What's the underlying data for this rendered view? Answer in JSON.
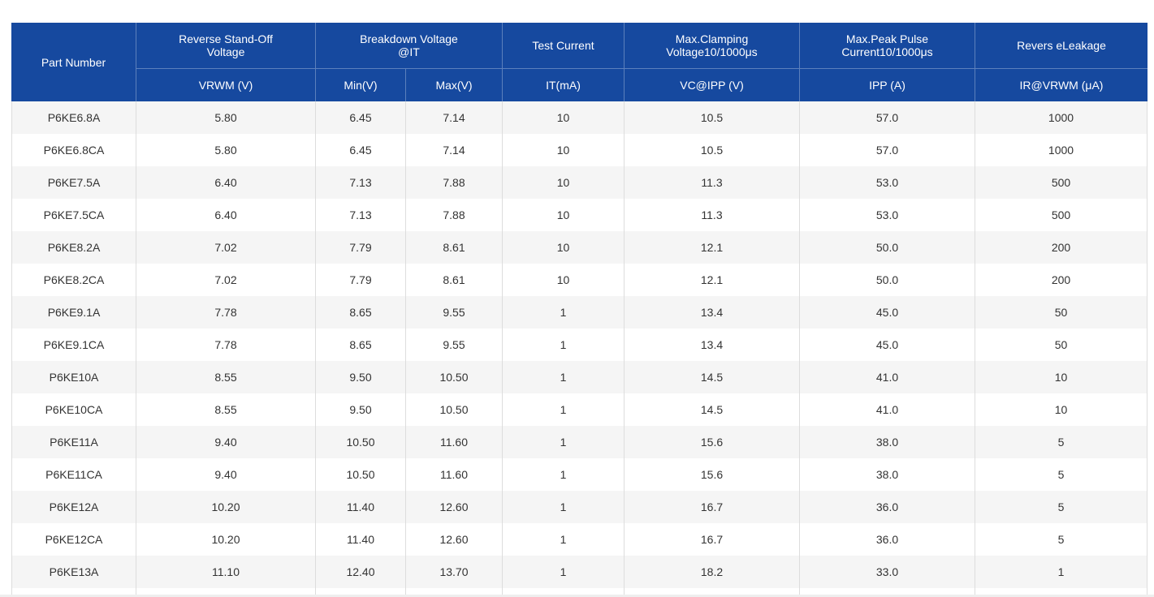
{
  "colors": {
    "header_background": "#16499f",
    "header_text": "#ffffff",
    "row_stripe": "#f5f5f5",
    "cell_text": "#333333"
  },
  "header": {
    "part_number": "Part Number",
    "reverse_standoff": {
      "line1": "Reverse Stand-Off",
      "line2": "Voltage",
      "unit": "VRWM (V)"
    },
    "breakdown": {
      "line1": "Breakdown Voltage",
      "line2": "@IT",
      "min": "Min(V)",
      "max": "Max(V)"
    },
    "test_current": {
      "label": "Test Current",
      "unit": "IT(mA)"
    },
    "clamping": {
      "line1": "Max.Clamping",
      "line2": "Voltage10/1000μs",
      "unit": "VC@IPP (V)"
    },
    "peak_pulse": {
      "line1": "Max.Peak Pulse",
      "line2": "Current10/1000μs",
      "unit": "IPP (A)"
    },
    "leakage": {
      "label": "Revers eLeakage",
      "unit": "IR@VRWM (μA)"
    }
  },
  "rows": [
    {
      "part": "P6KE6.8A",
      "vrwm": "5.80",
      "vbr_min": "6.45",
      "vbr_max": "7.14",
      "it": "10",
      "vc": "10.5",
      "ipp": "57.0",
      "ir": "1000"
    },
    {
      "part": "P6KE6.8CA",
      "vrwm": "5.80",
      "vbr_min": "6.45",
      "vbr_max": "7.14",
      "it": "10",
      "vc": "10.5",
      "ipp": "57.0",
      "ir": "1000"
    },
    {
      "part": "P6KE7.5A",
      "vrwm": "6.40",
      "vbr_min": "7.13",
      "vbr_max": "7.88",
      "it": "10",
      "vc": "11.3",
      "ipp": "53.0",
      "ir": "500"
    },
    {
      "part": "P6KE7.5CA",
      "vrwm": "6.40",
      "vbr_min": "7.13",
      "vbr_max": "7.88",
      "it": "10",
      "vc": "11.3",
      "ipp": "53.0",
      "ir": "500"
    },
    {
      "part": "P6KE8.2A",
      "vrwm": "7.02",
      "vbr_min": "7.79",
      "vbr_max": "8.61",
      "it": "10",
      "vc": "12.1",
      "ipp": "50.0",
      "ir": "200"
    },
    {
      "part": "P6KE8.2CA",
      "vrwm": "7.02",
      "vbr_min": "7.79",
      "vbr_max": "8.61",
      "it": "10",
      "vc": "12.1",
      "ipp": "50.0",
      "ir": "200"
    },
    {
      "part": "P6KE9.1A",
      "vrwm": "7.78",
      "vbr_min": "8.65",
      "vbr_max": "9.55",
      "it": "1",
      "vc": "13.4",
      "ipp": "45.0",
      "ir": "50"
    },
    {
      "part": "P6KE9.1CA",
      "vrwm": "7.78",
      "vbr_min": "8.65",
      "vbr_max": "9.55",
      "it": "1",
      "vc": "13.4",
      "ipp": "45.0",
      "ir": "50"
    },
    {
      "part": "P6KE10A",
      "vrwm": "8.55",
      "vbr_min": "9.50",
      "vbr_max": "10.50",
      "it": "1",
      "vc": "14.5",
      "ipp": "41.0",
      "ir": "10"
    },
    {
      "part": "P6KE10CA",
      "vrwm": "8.55",
      "vbr_min": "9.50",
      "vbr_max": "10.50",
      "it": "1",
      "vc": "14.5",
      "ipp": "41.0",
      "ir": "10"
    },
    {
      "part": "P6KE11A",
      "vrwm": "9.40",
      "vbr_min": "10.50",
      "vbr_max": "11.60",
      "it": "1",
      "vc": "15.6",
      "ipp": "38.0",
      "ir": "5"
    },
    {
      "part": "P6KE11CA",
      "vrwm": "9.40",
      "vbr_min": "10.50",
      "vbr_max": "11.60",
      "it": "1",
      "vc": "15.6",
      "ipp": "38.0",
      "ir": "5"
    },
    {
      "part": "P6KE12A",
      "vrwm": "10.20",
      "vbr_min": "11.40",
      "vbr_max": "12.60",
      "it": "1",
      "vc": "16.7",
      "ipp": "36.0",
      "ir": "5"
    },
    {
      "part": "P6KE12CA",
      "vrwm": "10.20",
      "vbr_min": "11.40",
      "vbr_max": "12.60",
      "it": "1",
      "vc": "16.7",
      "ipp": "36.0",
      "ir": "5"
    },
    {
      "part": "P6KE13A",
      "vrwm": "11.10",
      "vbr_min": "12.40",
      "vbr_max": "13.70",
      "it": "1",
      "vc": "18.2",
      "ipp": "33.0",
      "ir": "1"
    }
  ]
}
